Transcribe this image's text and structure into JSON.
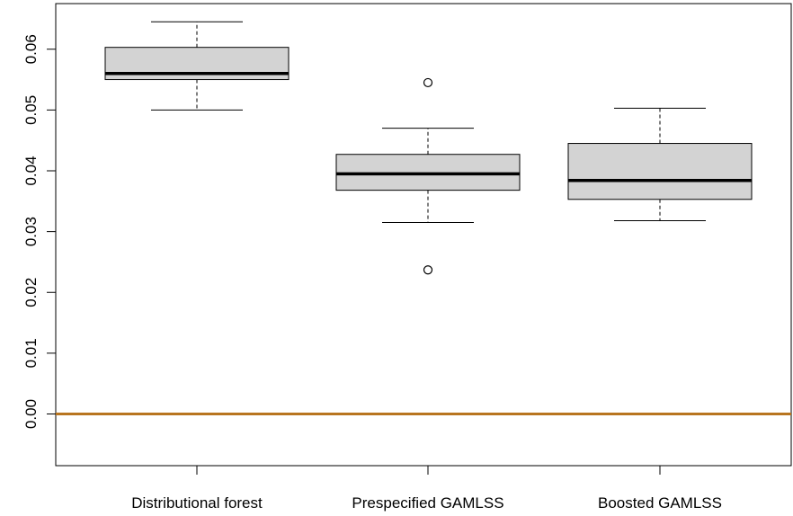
{
  "chart_data": {
    "type": "boxplot",
    "title": "",
    "xlabel": "",
    "ylabel": "",
    "ylim": [
      -0.0085,
      0.0675
    ],
    "y_ticks": [
      0.0,
      0.01,
      0.02,
      0.03,
      0.04,
      0.05,
      0.06
    ],
    "y_tick_labels": [
      "0.00",
      "0.01",
      "0.02",
      "0.03",
      "0.04",
      "0.05",
      "0.06"
    ],
    "categories": [
      "Distributional forest",
      "Prespecified GAMLSS",
      "Boosted GAMLSS"
    ],
    "boxes": [
      {
        "category": "Distributional forest",
        "whisker_low": 0.05,
        "q1": 0.055,
        "median": 0.056,
        "q3": 0.0603,
        "whisker_high": 0.0645,
        "outliers": []
      },
      {
        "category": "Prespecified GAMLSS",
        "whisker_low": 0.0315,
        "q1": 0.0368,
        "median": 0.0395,
        "q3": 0.0427,
        "whisker_high": 0.047,
        "outliers": [
          0.0545,
          0.0237
        ]
      },
      {
        "category": "Boosted GAMLSS",
        "whisker_low": 0.0318,
        "q1": 0.0353,
        "median": 0.0384,
        "q3": 0.0445,
        "whisker_high": 0.0503,
        "outliers": []
      }
    ],
    "reference_line": {
      "y": 0.0,
      "color": "#b8751f"
    },
    "box_fill": "#d3d3d3",
    "grid": false,
    "legend": "none"
  }
}
